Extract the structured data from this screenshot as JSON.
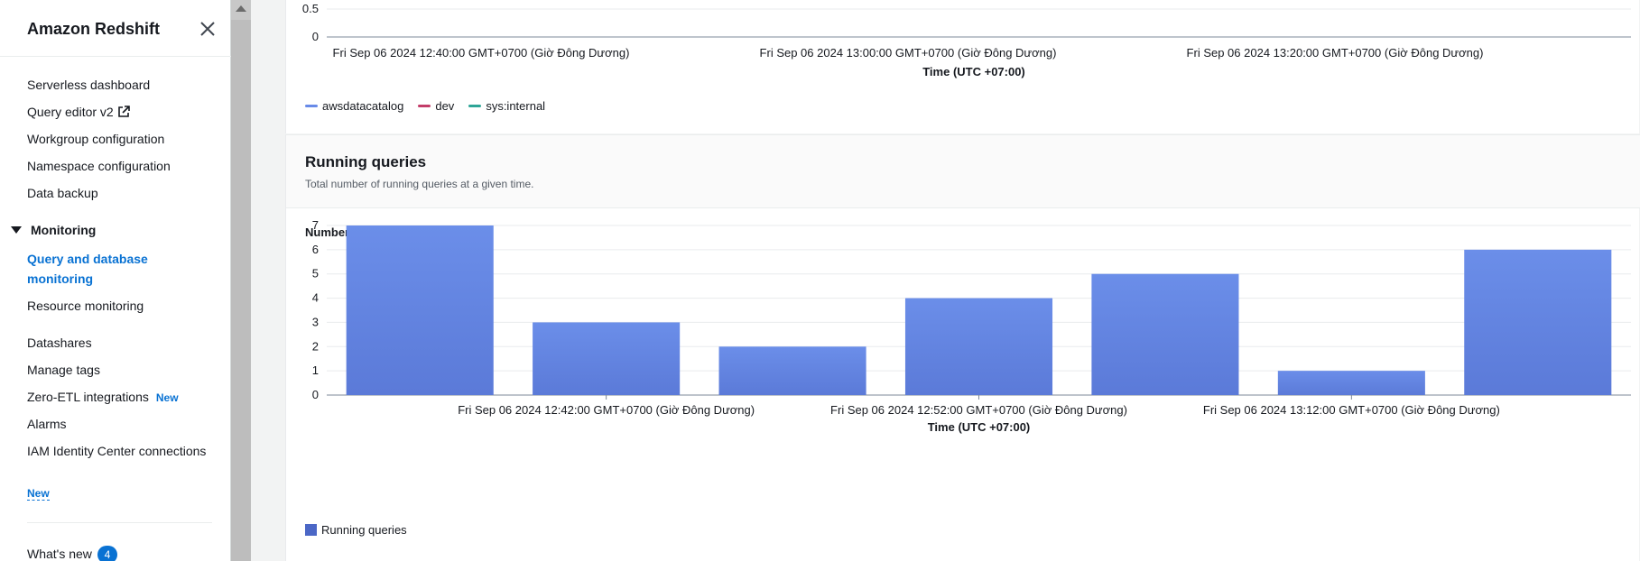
{
  "sidebar": {
    "title": "Amazon Redshift",
    "items_top": [
      {
        "label": "Serverless dashboard"
      },
      {
        "label": "Query editor v2"
      },
      {
        "label": "Workgroup configuration"
      },
      {
        "label": "Namespace configuration"
      },
      {
        "label": "Data backup"
      }
    ],
    "monitoring": {
      "label": "Monitoring",
      "active_item": "Query and database monitoring",
      "item2": "Resource monitoring"
    },
    "items_bottom": [
      {
        "label": "Datashares"
      },
      {
        "label": "Manage tags"
      },
      {
        "label": "Zero-ETL integrations",
        "badge": "New"
      },
      {
        "label": "Alarms"
      },
      {
        "label": "IAM Identity Center connections",
        "badge": "New"
      }
    ],
    "whats_new": {
      "label": "What's new",
      "count": "4"
    }
  },
  "top_chart": {
    "y_ticks": [
      "0.5",
      "0"
    ],
    "x_ticks": [
      "Fri Sep 06 2024 12:40:00 GMT+0700 (Giờ Đông Dương)",
      "Fri Sep 06 2024 13:00:00 GMT+0700 (Giờ Đông Dương)",
      "Fri Sep 06 2024 13:20:00 GMT+0700 (Giờ Đông Dương)"
    ],
    "x_title": "Time (UTC +07:00)",
    "legend": [
      {
        "name": "awsdatacatalog",
        "color": "#688ae8"
      },
      {
        "name": "dev",
        "color": "#c33d69"
      },
      {
        "name": "sys:internal",
        "color": "#2ea597"
      }
    ]
  },
  "running_queries": {
    "title": "Running queries",
    "description": "Total number of running queries at a given time.",
    "y_label": "Number of queries"
  },
  "chart_data": {
    "type": "bar",
    "categories": [
      "",
      "",
      "",
      "",
      "",
      "",
      ""
    ],
    "x_tick_labels": [
      "Fri Sep 06 2024 12:42:00 GMT+0700 (Giờ Đông Dương)",
      "Fri Sep 06 2024 12:52:00 GMT+0700 (Giờ Đông Dương)",
      "Fri Sep 06 2024 13:12:00 GMT+0700 (Giờ Đông Dương)"
    ],
    "series": [
      {
        "name": "Running queries",
        "values": [
          7,
          3,
          2,
          4,
          5,
          1,
          6
        ],
        "color": "#688ae8"
      }
    ],
    "xlabel": "Time (UTC +07:00)",
    "ylabel": "Number of queries",
    "ylim": [
      0,
      7
    ],
    "y_ticks": [
      "0",
      "1",
      "2",
      "3",
      "4",
      "5",
      "6",
      "7"
    ],
    "grid": true,
    "legend_placement": "bottom-left"
  }
}
